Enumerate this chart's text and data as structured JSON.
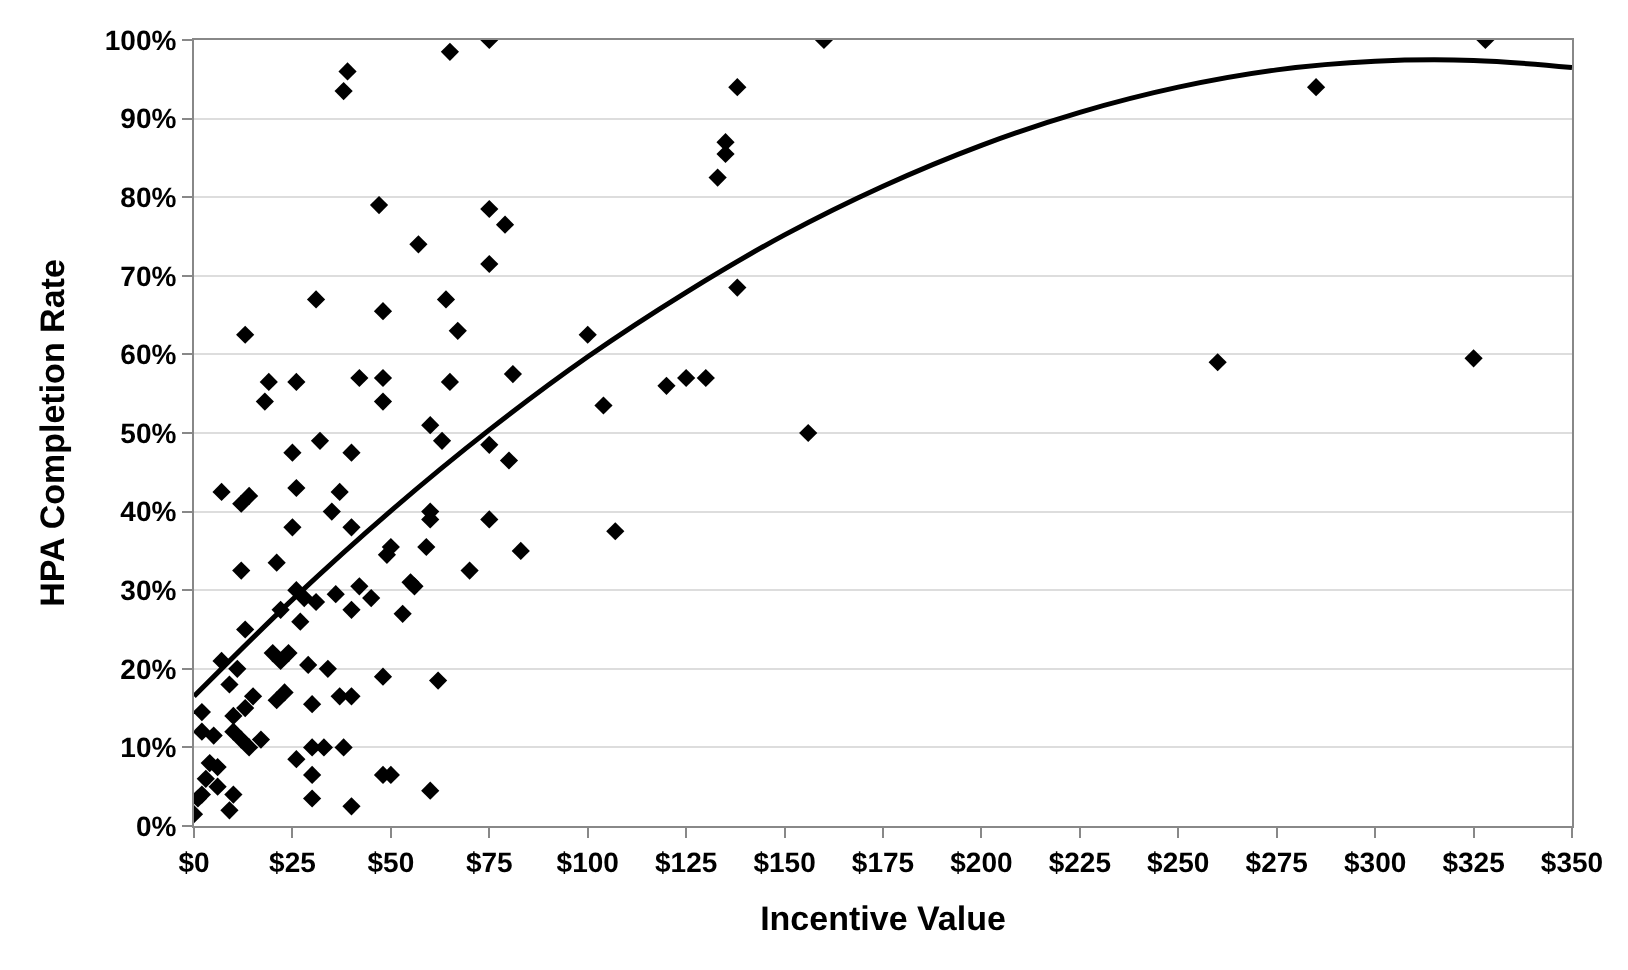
{
  "chart_data": {
    "type": "scatter",
    "xlabel": "Incentive Value",
    "ylabel": "HPA Completion Rate",
    "xlim": [
      0,
      350
    ],
    "xticks": [
      {
        "value": 0,
        "label": "$0"
      },
      {
        "value": 25,
        "label": "$25"
      },
      {
        "value": 50,
        "label": "$50"
      },
      {
        "value": 75,
        "label": "$75"
      },
      {
        "value": 100,
        "label": "$100"
      },
      {
        "value": 125,
        "label": "$125"
      },
      {
        "value": 150,
        "label": "$150"
      },
      {
        "value": 175,
        "label": "$175"
      },
      {
        "value": 200,
        "label": "$200"
      },
      {
        "value": 225,
        "label": "$225"
      },
      {
        "value": 250,
        "label": "$250"
      },
      {
        "value": 275,
        "label": "$275"
      },
      {
        "value": 300,
        "label": "$300"
      },
      {
        "value": 325,
        "label": "$325"
      },
      {
        "value": 350,
        "label": "$350"
      }
    ],
    "ylim": [
      0,
      100
    ],
    "yticks": [
      {
        "value": 0,
        "label": "0%"
      },
      {
        "value": 10,
        "label": "10%"
      },
      {
        "value": 20,
        "label": "20%"
      },
      {
        "value": 30,
        "label": "30%"
      },
      {
        "value": 40,
        "label": "40%"
      },
      {
        "value": 50,
        "label": "50%"
      },
      {
        "value": 60,
        "label": "60%"
      },
      {
        "value": 70,
        "label": "70%"
      },
      {
        "value": 80,
        "label": "80%"
      },
      {
        "value": 90,
        "label": "90%"
      },
      {
        "value": 100,
        "label": "100%"
      }
    ],
    "grid": "y",
    "marker": "diamond",
    "series": [
      {
        "color": "#000000",
        "x": [
          0,
          1,
          2,
          2,
          2,
          3,
          4,
          5,
          6,
          6,
          7,
          7,
          9,
          9,
          10,
          10,
          10,
          11,
          12,
          12,
          12,
          13,
          13,
          13,
          14,
          14,
          15,
          17,
          18,
          19,
          20,
          21,
          21,
          22,
          22,
          23,
          24,
          25,
          25,
          26,
          26,
          26,
          26,
          27,
          28,
          29,
          30,
          30,
          30,
          30,
          31,
          31,
          32,
          33,
          34,
          35,
          36,
          37,
          37,
          38,
          38,
          39,
          40,
          40,
          40,
          40,
          40,
          42,
          42,
          45,
          47,
          48,
          48,
          48,
          48,
          48,
          49,
          50,
          50,
          53,
          55,
          56,
          57,
          59,
          60,
          60,
          60,
          60,
          62,
          63,
          64,
          65,
          65,
          67,
          70,
          75,
          75,
          75,
          75,
          75,
          79,
          80,
          81,
          83,
          100,
          104,
          107,
          120,
          125,
          130,
          133,
          135,
          135,
          138,
          138,
          156,
          160,
          260,
          285,
          325,
          328
        ],
        "values": [
          1.5,
          3.5,
          4,
          12,
          14.5,
          6,
          8,
          11.5,
          7.5,
          5,
          42.5,
          21,
          18,
          2,
          14,
          4,
          12,
          20,
          41,
          32.5,
          11,
          25,
          15,
          62.5,
          42,
          10,
          16.5,
          11,
          54,
          56.5,
          22,
          16,
          33.5,
          27.5,
          21,
          17,
          22,
          47.5,
          38,
          30,
          56.5,
          43,
          8.5,
          26,
          29,
          20.5,
          10,
          15.5,
          6.5,
          3.5,
          67,
          28.5,
          49,
          10,
          20,
          40,
          29.5,
          16.5,
          42.5,
          10,
          93.5,
          96,
          27.5,
          47.5,
          2.5,
          38,
          16.5,
          57,
          30.5,
          29,
          79,
          65.5,
          57,
          54,
          19,
          6.5,
          34.5,
          6.5,
          35.5,
          27,
          31,
          30.5,
          74,
          35.5,
          4.5,
          51,
          40,
          39,
          18.5,
          49,
          67,
          56.5,
          98.5,
          63,
          32.5,
          71.5,
          78.5,
          48.5,
          39,
          100,
          76.5,
          46.5,
          57.5,
          35,
          62.5,
          53.5,
          37.5,
          56,
          57,
          57,
          82.5,
          85.5,
          87,
          94,
          68.5,
          50,
          100,
          59,
          94,
          59.5,
          100
        ]
      },
      {
        "type": "line",
        "color": "#000000",
        "marker": "none",
        "line_style": "solid",
        "x": [
          0,
          25,
          50,
          75,
          100,
          125,
          150,
          175,
          200,
          225,
          250,
          275,
          300,
          325,
          350
        ],
        "values": [
          16.5,
          28.8,
          40.1,
          50.4,
          59.7,
          67.9,
          75.2,
          81.4,
          86.6,
          90.8,
          94,
          96.2,
          97.3,
          97.4,
          96.5
        ]
      }
    ]
  }
}
